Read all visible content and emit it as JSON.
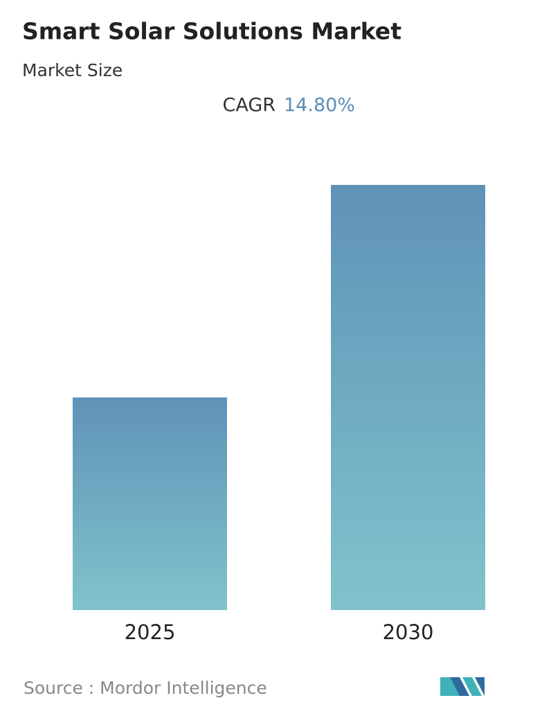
{
  "chart_data": {
    "type": "bar",
    "title": "Smart Solar Solutions Market",
    "subtitle": "Market Size",
    "cagr_label": "CAGR",
    "cagr_value": "14.80%",
    "categories": [
      "2025",
      "2030"
    ],
    "values": [
      1,
      2
    ],
    "gradient": [
      "#5f92b8",
      "#80c3cb"
    ],
    "source": "Source :  Mordor Intelligence"
  }
}
